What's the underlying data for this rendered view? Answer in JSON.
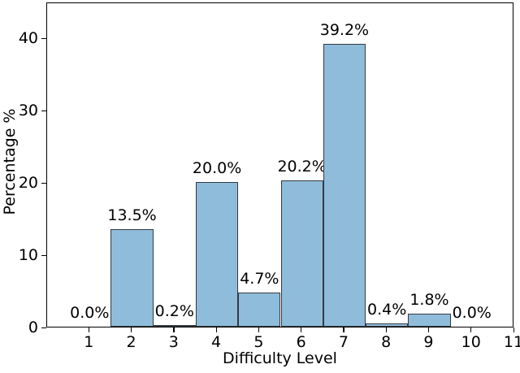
{
  "figure": {
    "background": "#ffffff"
  },
  "chart_data": {
    "type": "bar",
    "title": "",
    "xlabel": "Difficulty Level",
    "ylabel": "Percentage %",
    "categories": [
      1,
      2,
      3,
      4,
      5,
      6,
      7,
      8,
      9,
      10
    ],
    "values": [
      0.0,
      13.5,
      0.2,
      20.0,
      4.7,
      20.2,
      39.2,
      0.4,
      1.8,
      0.0
    ],
    "bar_labels": [
      "0.0%",
      "13.5%",
      "0.2%",
      "20.0%",
      "4.7%",
      "20.2%",
      "39.2%",
      "0.4%",
      "1.8%",
      "0.0%"
    ],
    "bar_width": 1,
    "xlim": [
      0,
      11
    ],
    "ylim": [
      0,
      45
    ],
    "x_ticks": [
      1,
      2,
      3,
      4,
      5,
      6,
      7,
      8,
      9,
      10,
      11
    ],
    "y_ticks": [
      0,
      10,
      20,
      30,
      40
    ],
    "grid": false,
    "legend_position": "none",
    "colors": {
      "bar_fill": "#8fbcdb",
      "bar_edge": "#343a40",
      "axis": "#000000",
      "text": "#000000"
    }
  }
}
